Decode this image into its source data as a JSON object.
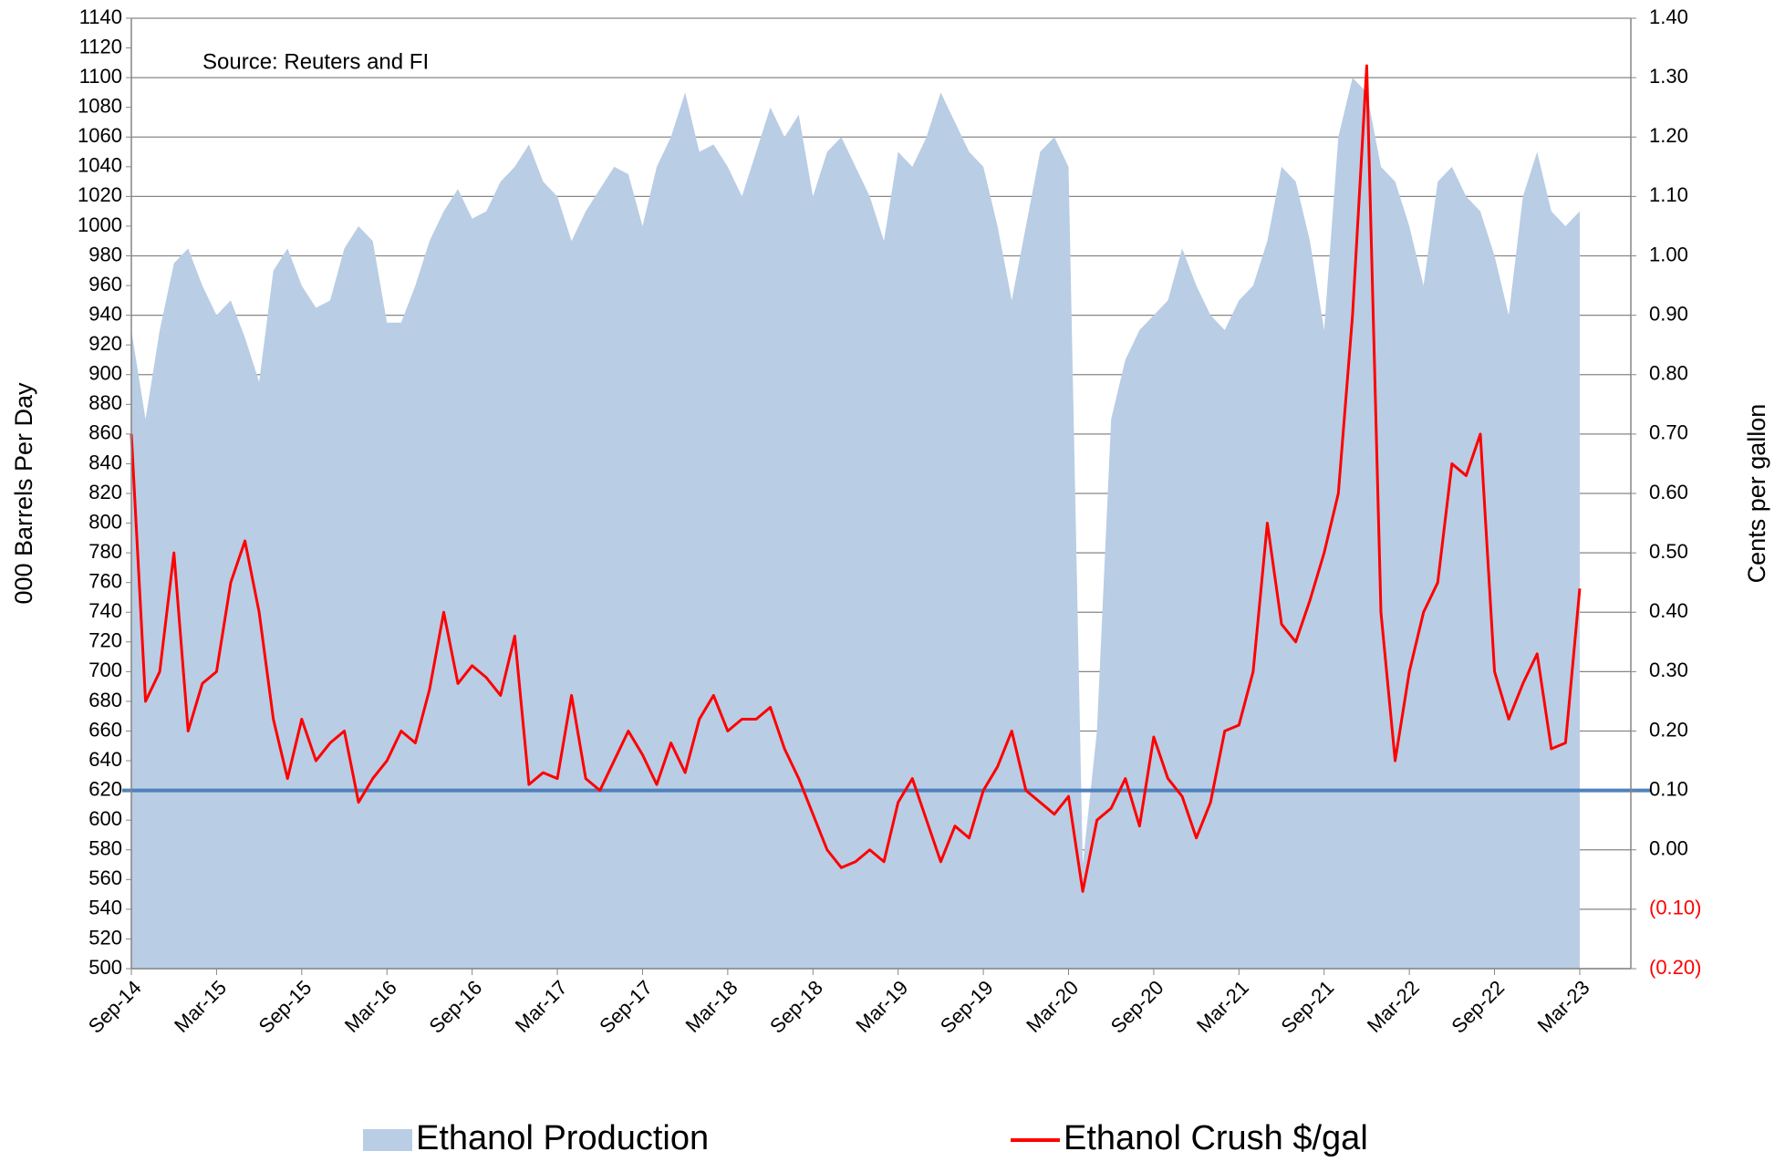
{
  "chart_data": {
    "type": "combo",
    "annotation": "Source: Reuters and FI",
    "y_label": "000 Barrels Per Day",
    "y2_label": "Cents per gallon",
    "categories": [
      "Sep-14",
      null,
      null,
      null,
      null,
      null,
      "Mar-15",
      null,
      null,
      null,
      null,
      null,
      "Sep-15",
      null,
      null,
      null,
      null,
      null,
      "Mar-16",
      null,
      null,
      null,
      null,
      null,
      "Sep-16",
      null,
      null,
      null,
      null,
      null,
      "Mar-17",
      null,
      null,
      null,
      null,
      null,
      "Sep-17",
      null,
      null,
      null,
      null,
      null,
      "Mar-18",
      null,
      null,
      null,
      null,
      null,
      "Sep-18",
      null,
      null,
      null,
      null,
      null,
      "Mar-19",
      null,
      null,
      null,
      null,
      null,
      "Sep-19",
      null,
      null,
      null,
      null,
      null,
      "Mar-20",
      null,
      null,
      null,
      null,
      null,
      "Sep-20",
      null,
      null,
      null,
      null,
      null,
      "Mar-21",
      null,
      null,
      null,
      null,
      null,
      "Sep-21",
      null,
      null,
      null,
      null,
      null,
      "Mar-22",
      null,
      null,
      null,
      null,
      null,
      "Sep-22",
      null,
      null,
      null,
      null,
      null,
      "Mar-23"
    ],
    "series": [
      {
        "name": "Ethanol Production",
        "type": "area",
        "color": "#b9cde5",
        "values": [
          930,
          870,
          930,
          975,
          985,
          960,
          940,
          950,
          925,
          895,
          970,
          985,
          960,
          945,
          950,
          985,
          1000,
          990,
          935,
          935,
          960,
          990,
          1010,
          1025,
          1005,
          1010,
          1030,
          1040,
          1055,
          1030,
          1020,
          990,
          1010,
          1025,
          1040,
          1035,
          1000,
          1040,
          1060,
          1090,
          1050,
          1055,
          1040,
          1020,
          1050,
          1080,
          1060,
          1075,
          1020,
          1050,
          1060,
          1040,
          1020,
          990,
          1050,
          1040,
          1060,
          1090,
          1070,
          1050,
          1040,
          1000,
          950,
          1000,
          1050,
          1060,
          1040,
          570,
          660,
          870,
          910,
          930,
          940,
          950,
          985,
          960,
          940,
          930,
          950,
          960,
          990,
          1040,
          1030,
          990,
          930,
          1060,
          1100,
          1090,
          1040,
          1030,
          1000,
          960,
          1030,
          1040,
          1020,
          1010,
          980,
          940,
          1020,
          1050,
          1010,
          1000,
          1010
        ]
      },
      {
        "name": "Ethanol Crush $/gal",
        "type": "line",
        "color": "#ff0000",
        "axis": "y2",
        "values": [
          0.7,
          0.25,
          0.3,
          0.5,
          0.2,
          0.28,
          0.3,
          0.45,
          0.52,
          0.4,
          0.22,
          0.12,
          0.22,
          0.15,
          0.18,
          0.2,
          0.08,
          0.12,
          0.15,
          0.2,
          0.18,
          0.27,
          0.4,
          0.28,
          0.31,
          0.29,
          0.26,
          0.36,
          0.11,
          0.13,
          0.12,
          0.26,
          0.12,
          0.1,
          0.15,
          0.2,
          0.16,
          0.11,
          0.18,
          0.13,
          0.22,
          0.26,
          0.2,
          0.22,
          0.22,
          0.24,
          0.17,
          0.12,
          0.06,
          0.0,
          -0.03,
          -0.02,
          0.0,
          -0.02,
          0.08,
          0.12,
          0.05,
          -0.02,
          0.04,
          0.02,
          0.1,
          0.14,
          0.2,
          0.1,
          0.08,
          0.06,
          0.09,
          -0.07,
          0.05,
          0.07,
          0.12,
          0.04,
          0.19,
          0.12,
          0.09,
          0.02,
          0.08,
          0.2,
          0.21,
          0.3,
          0.55,
          0.38,
          0.35,
          0.42,
          0.5,
          0.6,
          0.9,
          1.32,
          0.4,
          0.15,
          0.3,
          0.4,
          0.45,
          0.65,
          0.63,
          0.7,
          0.3,
          0.22,
          0.28,
          0.33,
          0.17,
          0.18,
          0.44
        ]
      }
    ],
    "hline": {
      "value": 0.1,
      "axis": "y2",
      "color": "#4f81bd"
    },
    "ylim": [
      500,
      1140
    ],
    "yticks": [
      500,
      520,
      540,
      560,
      580,
      600,
      620,
      640,
      660,
      680,
      700,
      720,
      740,
      760,
      780,
      800,
      820,
      840,
      860,
      880,
      900,
      920,
      940,
      960,
      980,
      1000,
      1020,
      1040,
      1060,
      1080,
      1100,
      1120,
      1140
    ],
    "y2lim": [
      -0.2,
      1.4
    ],
    "y2ticks": [
      {
        "value": -0.2,
        "label": "(0.20)"
      },
      {
        "value": -0.1,
        "label": "(0.10)"
      },
      {
        "value": 0,
        "label": "0.00"
      },
      {
        "value": 0.1,
        "label": "0.10"
      },
      {
        "value": 0.2,
        "label": "0.20"
      },
      {
        "value": 0.3,
        "label": "0.30"
      },
      {
        "value": 0.4,
        "label": "0.40"
      },
      {
        "value": 0.5,
        "label": "0.50"
      },
      {
        "value": 0.6,
        "label": "0.60"
      },
      {
        "value": 0.7,
        "label": "0.70"
      },
      {
        "value": 0.8,
        "label": "0.80"
      },
      {
        "value": 0.9,
        "label": "0.90"
      },
      {
        "value": 1.0,
        "label": "1.00"
      },
      {
        "value": 1.1,
        "label": "1.10"
      },
      {
        "value": 1.2,
        "label": "1.20"
      },
      {
        "value": 1.3,
        "label": "1.30"
      },
      {
        "value": 1.4,
        "label": "1.40"
      }
    ],
    "y2_negative_color": "#ff0000",
    "grid": true
  }
}
